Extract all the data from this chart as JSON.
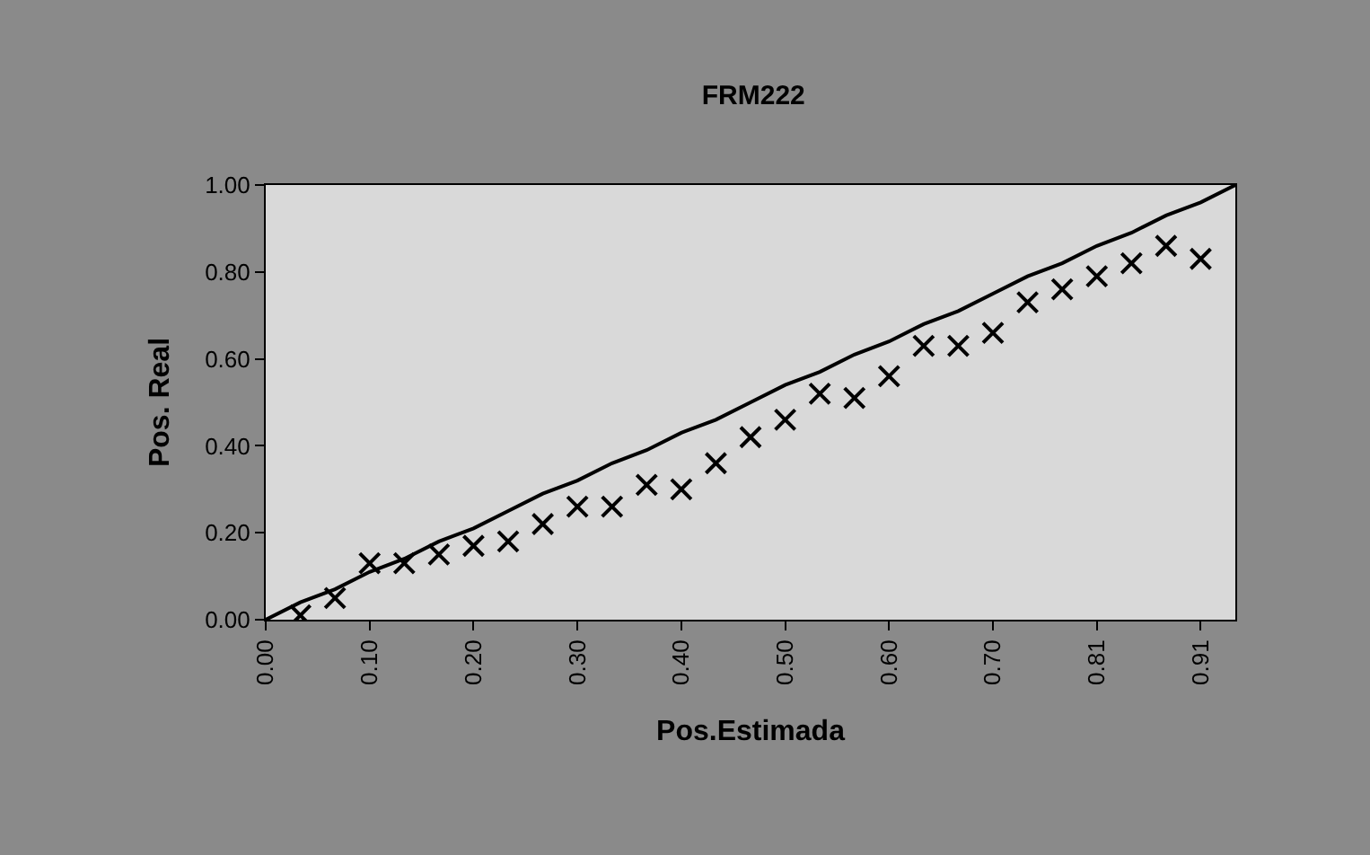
{
  "chart_data": {
    "type": "line",
    "title": "FRM222",
    "xlabel": "Pos.Estimada",
    "ylabel": "Pos. Real",
    "categories": [
      "0.00",
      null,
      null,
      "0.10",
      null,
      null,
      "0.20",
      null,
      null,
      "0.30",
      null,
      null,
      "0.40",
      null,
      null,
      "0.50",
      null,
      null,
      "0.60",
      null,
      null,
      "0.70",
      null,
      null,
      "0.81",
      null,
      null,
      "0.91",
      null
    ],
    "series": [
      {
        "color": "#000000",
        "marker": "none",
        "values": [
          0,
          0.04,
          0.07,
          0.11,
          0.14,
          0.18,
          0.21,
          0.25,
          0.29,
          0.32,
          0.36,
          0.39,
          0.43,
          0.46,
          0.5,
          0.54,
          0.57,
          0.61,
          0.64,
          0.68,
          0.71,
          0.75,
          0.79,
          0.82,
          0.86,
          0.89,
          0.93,
          0.96,
          1.0
        ]
      },
      {
        "type": "scatter",
        "color": "#000000",
        "marker": "cross",
        "values": [
          null,
          0.01,
          0.05,
          0.13,
          0.13,
          0.15,
          0.17,
          0.18,
          0.22,
          0.26,
          0.26,
          0.31,
          0.3,
          0.36,
          0.42,
          0.46,
          0.52,
          0.51,
          0.56,
          0.63,
          0.63,
          0.66,
          0.73,
          0.76,
          0.79,
          0.82,
          0.86,
          0.83,
          null
        ]
      }
    ],
    "ylim": [
      0,
      1
    ],
    "yticks": [
      {
        "value": 0,
        "label": "0.00"
      },
      {
        "value": 0.2,
        "label": "0.20"
      },
      {
        "value": 0.4,
        "label": "0.40"
      },
      {
        "value": 0.6,
        "label": "0.60"
      },
      {
        "value": 0.8,
        "label": "0.80"
      },
      {
        "value": 1,
        "label": "1.00"
      }
    ],
    "grid": false
  }
}
